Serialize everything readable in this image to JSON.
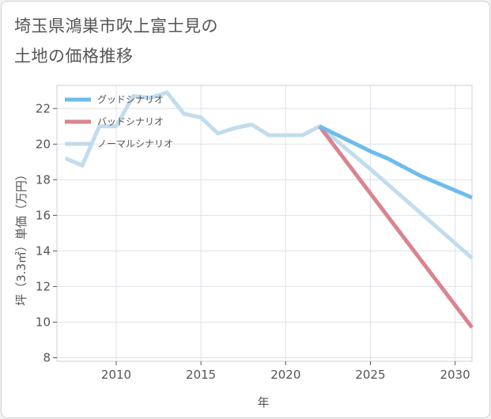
{
  "title_lines": [
    "埼玉県鴻巣市吹上富士見の",
    "土地の価格推移"
  ],
  "chart_data": {
    "type": "line",
    "xlabel": "年",
    "ylabel": "坪（3.3㎡）単価（万円）",
    "xlim": [
      2006.5,
      2031
    ],
    "ylim": [
      7.8,
      23.3
    ],
    "x_ticks": [
      2010,
      2015,
      2020,
      2025,
      2030
    ],
    "y_ticks": [
      8,
      10,
      12,
      14,
      16,
      18,
      20,
      22
    ],
    "legend_position": "top-left",
    "grid": true,
    "series": [
      {
        "name": "グッドシナリオ",
        "color": "#6fbcec",
        "x": [
          2022,
          2025,
          2026,
          2027,
          2028,
          2029,
          2030,
          2031
        ],
        "y": [
          21.0,
          19.6,
          19.2,
          18.7,
          18.2,
          17.8,
          17.4,
          17.0
        ]
      },
      {
        "name": "バッドシナリオ",
        "color": "#d9848e",
        "x": [
          2022,
          2031
        ],
        "y": [
          21.0,
          9.7
        ]
      },
      {
        "name": "ノーマルシナリオ",
        "color": "#c2dced",
        "x": [
          2007,
          2008,
          2009,
          2010,
          2011,
          2012,
          2013,
          2014,
          2015,
          2016,
          2017,
          2018,
          2019,
          2020,
          2021,
          2022,
          2025,
          2031
        ],
        "y": [
          19.2,
          18.8,
          21.0,
          21.0,
          22.7,
          22.6,
          22.9,
          21.7,
          21.5,
          20.6,
          20.9,
          21.1,
          20.5,
          20.5,
          20.5,
          21.0,
          18.6,
          13.6
        ]
      }
    ]
  }
}
